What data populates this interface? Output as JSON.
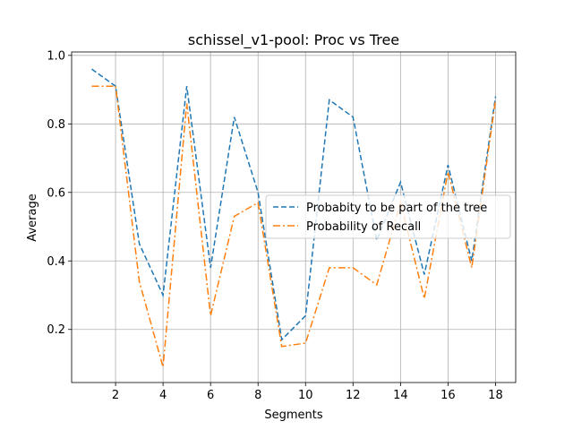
{
  "chart_data": {
    "type": "line",
    "title": "schissel_v1-pool: Proc vs Tree",
    "xlabel": "Segments",
    "ylabel": "Average",
    "x": [
      1,
      2,
      3,
      4,
      5,
      6,
      7,
      8,
      9,
      10,
      11,
      12,
      13,
      14,
      15,
      16,
      17,
      18
    ],
    "xlim": [
      0.15,
      18.85
    ],
    "ylim": [
      0.045,
      1.01
    ],
    "xticks": [
      2,
      4,
      6,
      8,
      10,
      12,
      14,
      16,
      18
    ],
    "yticks": [
      0.2,
      0.4,
      0.6,
      0.8,
      1.0
    ],
    "xtick_labels": [
      "2",
      "4",
      "6",
      "8",
      "10",
      "12",
      "14",
      "16",
      "18"
    ],
    "ytick_labels": [
      "0.2",
      "0.4",
      "0.6",
      "0.8",
      "1.0"
    ],
    "grid": true,
    "legend_position": "center-right",
    "series": [
      {
        "name": "Probabity to be part of the tree",
        "color": "#1f77b4",
        "dash": "dashed",
        "values": [
          0.96,
          0.91,
          0.45,
          0.3,
          0.91,
          0.38,
          0.82,
          0.6,
          0.17,
          0.24,
          0.87,
          0.82,
          0.46,
          0.63,
          0.36,
          0.68,
          0.4,
          0.88
        ]
      },
      {
        "name": "Probability of Recall",
        "color": "#ff7f0e",
        "dash": "dashdot",
        "values": [
          0.91,
          0.91,
          0.34,
          0.09,
          0.86,
          0.24,
          0.53,
          0.57,
          0.15,
          0.16,
          0.38,
          0.38,
          0.33,
          0.57,
          0.29,
          0.66,
          0.38,
          0.87
        ]
      }
    ]
  }
}
